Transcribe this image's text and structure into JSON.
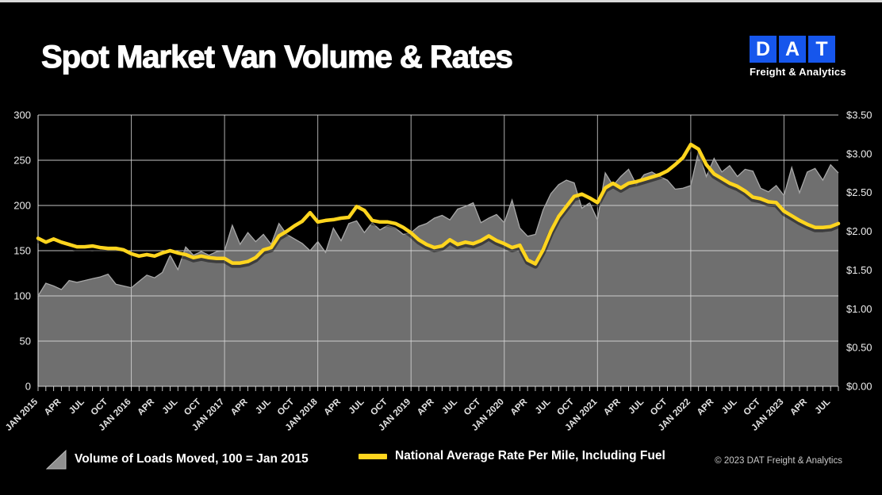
{
  "page": {
    "title": "Spot Market Van Volume & Rates"
  },
  "logo": {
    "letters": [
      "D",
      "A",
      "T"
    ],
    "subtitle": "Freight & Analytics",
    "square_blue": "#1656ec"
  },
  "legend": [
    {
      "label": "Volume of Loads Moved, 100 = Jan 2015",
      "swatch": "area-triangle-icon",
      "color": "#8f8f8f"
    },
    {
      "label": "National Average Rate Per Mile, Including Fuel",
      "swatch": "line",
      "color": "#ffd51e"
    }
  ],
  "footer": {
    "copyright": "© 2023 DAT Freight & Analytics"
  },
  "chart_data": {
    "type": "area",
    "title": "Spot Market Van Volume & Rates",
    "x_start": "JAN 2015",
    "x_end": "AUG 2023",
    "x_frequency": "monthly",
    "x_tick_labels": [
      "JAN 2015",
      "APR",
      "JUL",
      "OCT",
      "JAN 2016",
      "APR",
      "JUL",
      "OCT",
      "JAN 2017",
      "APR",
      "JUL",
      "OCT",
      "JAN 2018",
      "APR",
      "JUL",
      "OCT",
      "JAN 2019",
      "APR",
      "JUL",
      "OCT",
      "JAN 2020",
      "APR",
      "JUL",
      "OCT",
      "JAN 2021",
      "APR",
      "JUL",
      "OCT",
      "JAN 2022",
      "APR",
      "JUL",
      "OCT",
      "JAN 2023",
      "APR",
      "JUL"
    ],
    "left_axis": {
      "ticks": [
        0,
        50,
        100,
        150,
        200,
        250,
        300
      ],
      "range": [
        0,
        300
      ]
    },
    "right_axis": {
      "tick_labels": [
        "$0.00",
        "$0.50",
        "$1.00",
        "$1.50",
        "$2.00",
        "$2.50",
        "$3.00",
        "$3.50"
      ],
      "range": [
        0,
        3.5
      ]
    },
    "grid": "on",
    "background": "#000000",
    "gridline_color": "#d9d9d9",
    "series": [
      {
        "name": "Volume of Loads Moved, 100 = Jan 2015",
        "type": "area",
        "axis": "left",
        "color": "#6f6f6f",
        "edge_color": "#a8a8a8",
        "values": [
          100,
          114,
          111,
          107,
          117,
          115,
          117,
          119,
          121,
          124,
          113,
          111,
          109,
          116,
          123,
          120,
          126,
          145,
          129,
          154,
          145,
          149,
          145,
          149,
          150,
          178,
          157,
          170,
          160,
          168,
          157,
          180,
          168,
          163,
          158,
          150,
          160,
          148,
          175,
          161,
          180,
          183,
          170,
          181,
          173,
          178,
          175,
          168,
          170,
          177,
          180,
          186,
          189,
          184,
          196,
          199,
          203,
          181,
          186,
          190,
          181,
          206,
          175,
          166,
          168,
          195,
          213,
          223,
          228,
          225,
          197,
          203,
          184,
          236,
          222,
          232,
          240,
          223,
          234,
          237,
          232,
          228,
          218,
          219,
          222,
          260,
          232,
          252,
          237,
          244,
          232,
          240,
          238,
          219,
          215,
          222,
          211,
          242,
          214,
          237,
          241,
          228,
          245,
          236
        ]
      },
      {
        "name": "National Average Rate Per Mile, Including Fuel",
        "type": "line",
        "axis": "right",
        "color": "#ffd51e",
        "values": [
          1.91,
          1.86,
          1.9,
          1.86,
          1.83,
          1.8,
          1.8,
          1.81,
          1.79,
          1.78,
          1.78,
          1.76,
          1.71,
          1.68,
          1.7,
          1.68,
          1.72,
          1.75,
          1.72,
          1.7,
          1.66,
          1.68,
          1.66,
          1.65,
          1.65,
          1.59,
          1.59,
          1.61,
          1.66,
          1.76,
          1.79,
          1.94,
          2.0,
          2.07,
          2.13,
          2.24,
          2.12,
          2.14,
          2.15,
          2.17,
          2.18,
          2.32,
          2.27,
          2.14,
          2.12,
          2.12,
          2.1,
          2.05,
          1.98,
          1.89,
          1.83,
          1.79,
          1.81,
          1.89,
          1.83,
          1.86,
          1.84,
          1.88,
          1.94,
          1.88,
          1.84,
          1.79,
          1.82,
          1.63,
          1.58,
          1.76,
          2.0,
          2.19,
          2.32,
          2.45,
          2.48,
          2.43,
          2.37,
          2.56,
          2.62,
          2.56,
          2.62,
          2.64,
          2.67,
          2.7,
          2.73,
          2.78,
          2.86,
          2.95,
          3.12,
          3.06,
          2.86,
          2.74,
          2.68,
          2.62,
          2.58,
          2.52,
          2.44,
          2.42,
          2.38,
          2.37,
          2.26,
          2.2,
          2.14,
          2.09,
          2.05,
          2.05,
          2.06,
          2.1
        ]
      }
    ]
  }
}
